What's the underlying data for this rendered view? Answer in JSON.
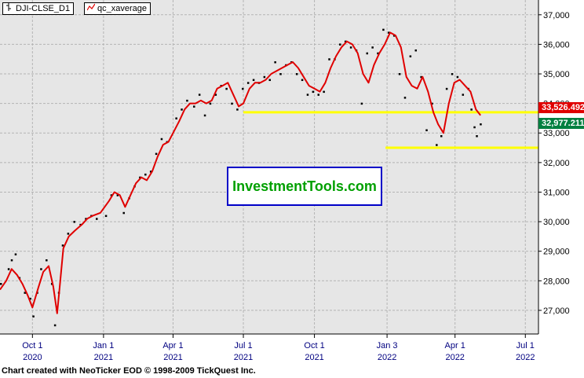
{
  "legend": [
    {
      "label": "DJI-CLSE_D1",
      "icon": "bar-chart-icon"
    },
    {
      "label": "qc_xaverage",
      "icon": "line-chart-icon"
    }
  ],
  "watermark": "InvestmentTools.com",
  "footer": "Chart created with NeoTicker EOD © 1998-2009 TickQuest Inc.",
  "price_labels": [
    {
      "value": "33,526.492",
      "color": "#e00000"
    },
    {
      "value": "32,977.211",
      "color": "#008040"
    }
  ],
  "colors": {
    "plot_bg": "#e6e6e6",
    "grid": "#b4b4b4",
    "ma_line": "#e00000",
    "price_dots": "#000000",
    "support": "#ffff00"
  },
  "chart_data": {
    "type": "line",
    "ylim": [
      26200,
      37500
    ],
    "y_ticks": [
      27000,
      28000,
      29000,
      30000,
      31000,
      32000,
      33000,
      34000,
      35000,
      36000,
      37000
    ],
    "y_tick_labels": [
      "27,000",
      "28,000",
      "29,000",
      "30,000",
      "31,000",
      "32,000",
      "33,000",
      "34,000",
      "35,000",
      "36,000",
      "37,000"
    ],
    "x_ticks": [
      {
        "date": "2020-10-01",
        "label1": "Oct 1",
        "label2": "2020"
      },
      {
        "date": "2021-01-01",
        "label1": "Jan 1",
        "label2": "2021"
      },
      {
        "date": "2021-04-01",
        "label1": "Apr 1",
        "label2": "2021"
      },
      {
        "date": "2021-07-01",
        "label1": "Jul 1",
        "label2": "2021"
      },
      {
        "date": "2021-10-01",
        "label1": "Oct 1",
        "label2": "2021"
      },
      {
        "date": "2022-01-03",
        "label1": "Jan 3",
        "label2": "2022"
      },
      {
        "date": "2022-04-01",
        "label1": "Apr 1",
        "label2": "2022"
      },
      {
        "date": "2022-07-01",
        "label1": "Jul 1",
        "label2": "2022"
      }
    ],
    "xlim": [
      "2020-08-20",
      "2022-07-18"
    ],
    "series": [
      {
        "name": "qc_xaverage",
        "points": [
          [
            "2020-08-20",
            27700
          ],
          [
            "2020-08-28",
            28000
          ],
          [
            "2020-09-04",
            28400
          ],
          [
            "2020-09-11",
            28200
          ],
          [
            "2020-09-18",
            27900
          ],
          [
            "2020-09-25",
            27500
          ],
          [
            "2020-10-01",
            27100
          ],
          [
            "2020-10-09",
            27800
          ],
          [
            "2020-10-15",
            28300
          ],
          [
            "2020-10-22",
            28500
          ],
          [
            "2020-10-28",
            27800
          ],
          [
            "2020-11-02",
            26900
          ],
          [
            "2020-11-06",
            28000
          ],
          [
            "2020-11-10",
            29100
          ],
          [
            "2020-11-17",
            29500
          ],
          [
            "2020-11-25",
            29700
          ],
          [
            "2020-12-04",
            29900
          ],
          [
            "2020-12-11",
            30100
          ],
          [
            "2020-12-18",
            30200
          ],
          [
            "2020-12-28",
            30300
          ],
          [
            "2021-01-08",
            30700
          ],
          [
            "2021-01-15",
            31000
          ],
          [
            "2021-01-22",
            30900
          ],
          [
            "2021-01-29",
            30500
          ],
          [
            "2021-02-05",
            30900
          ],
          [
            "2021-02-12",
            31300
          ],
          [
            "2021-02-19",
            31500
          ],
          [
            "2021-02-26",
            31400
          ],
          [
            "2021-03-05",
            31700
          ],
          [
            "2021-03-12",
            32200
          ],
          [
            "2021-03-19",
            32600
          ],
          [
            "2021-03-26",
            32700
          ],
          [
            "2021-04-01",
            33000
          ],
          [
            "2021-04-09",
            33400
          ],
          [
            "2021-04-16",
            33800
          ],
          [
            "2021-04-23",
            34000
          ],
          [
            "2021-04-30",
            34000
          ],
          [
            "2021-05-07",
            34100
          ],
          [
            "2021-05-14",
            34000
          ],
          [
            "2021-05-21",
            34100
          ],
          [
            "2021-05-28",
            34500
          ],
          [
            "2021-06-04",
            34600
          ],
          [
            "2021-06-11",
            34700
          ],
          [
            "2021-06-18",
            34300
          ],
          [
            "2021-06-25",
            33900
          ],
          [
            "2021-07-01",
            34000
          ],
          [
            "2021-07-09",
            34500
          ],
          [
            "2021-07-16",
            34700
          ],
          [
            "2021-07-23",
            34700
          ],
          [
            "2021-07-30",
            34800
          ],
          [
            "2021-08-06",
            35000
          ],
          [
            "2021-08-13",
            35100
          ],
          [
            "2021-08-20",
            35200
          ],
          [
            "2021-08-27",
            35300
          ],
          [
            "2021-09-03",
            35400
          ],
          [
            "2021-09-10",
            35200
          ],
          [
            "2021-09-17",
            34900
          ],
          [
            "2021-09-24",
            34600
          ],
          [
            "2021-10-01",
            34500
          ],
          [
            "2021-10-08",
            34400
          ],
          [
            "2021-10-15",
            34700
          ],
          [
            "2021-10-22",
            35200
          ],
          [
            "2021-10-29",
            35600
          ],
          [
            "2021-11-05",
            35900
          ],
          [
            "2021-11-12",
            36100
          ],
          [
            "2021-11-19",
            36000
          ],
          [
            "2021-11-26",
            35700
          ],
          [
            "2021-12-03",
            35000
          ],
          [
            "2021-12-10",
            34700
          ],
          [
            "2021-12-17",
            35300
          ],
          [
            "2021-12-24",
            35700
          ],
          [
            "2021-12-31",
            36000
          ],
          [
            "2022-01-07",
            36400
          ],
          [
            "2022-01-14",
            36300
          ],
          [
            "2022-01-21",
            35900
          ],
          [
            "2022-01-28",
            34900
          ],
          [
            "2022-02-04",
            34600
          ],
          [
            "2022-02-11",
            34500
          ],
          [
            "2022-02-18",
            34900
          ],
          [
            "2022-02-25",
            34400
          ],
          [
            "2022-03-04",
            33700
          ],
          [
            "2022-03-10",
            33300
          ],
          [
            "2022-03-17",
            33000
          ],
          [
            "2022-03-24",
            34000
          ],
          [
            "2022-03-31",
            34700
          ],
          [
            "2022-04-07",
            34800
          ],
          [
            "2022-04-14",
            34600
          ],
          [
            "2022-04-21",
            34400
          ],
          [
            "2022-04-28",
            33800
          ],
          [
            "2022-05-04",
            33600
          ]
        ]
      }
    ],
    "daily_closes": [
      [
        "2020-08-21",
        27900
      ],
      [
        "2020-08-31",
        28400
      ],
      [
        "2020-09-04",
        28700
      ],
      [
        "2020-09-09",
        28900
      ],
      [
        "2020-09-14",
        28100
      ],
      [
        "2020-09-21",
        27600
      ],
      [
        "2020-09-28",
        27400
      ],
      [
        "2020-10-02",
        26800
      ],
      [
        "2020-10-07",
        27600
      ],
      [
        "2020-10-12",
        28400
      ],
      [
        "2020-10-19",
        28700
      ],
      [
        "2020-10-26",
        27900
      ],
      [
        "2020-10-30",
        26500
      ],
      [
        "2020-11-04",
        27600
      ],
      [
        "2020-11-09",
        29200
      ],
      [
        "2020-11-16",
        29600
      ],
      [
        "2020-11-24",
        30000
      ],
      [
        "2020-12-02",
        29900
      ],
      [
        "2020-12-09",
        30100
      ],
      [
        "2020-12-16",
        30200
      ],
      [
        "2020-12-23",
        30100
      ],
      [
        "2021-01-04",
        30200
      ],
      [
        "2021-01-11",
        30900
      ],
      [
        "2021-01-19",
        30900
      ],
      [
        "2021-01-27",
        30300
      ],
      [
        "2021-02-03",
        30800
      ],
      [
        "2021-02-10",
        31200
      ],
      [
        "2021-02-17",
        31500
      ],
      [
        "2021-02-24",
        31600
      ],
      [
        "2021-03-03",
        31700
      ],
      [
        "2021-03-10",
        32300
      ],
      [
        "2021-03-17",
        32800
      ],
      [
        "2021-03-24",
        32700
      ],
      [
        "2021-04-05",
        33500
      ],
      [
        "2021-04-12",
        33800
      ],
      [
        "2021-04-19",
        34100
      ],
      [
        "2021-04-28",
        33900
      ],
      [
        "2021-05-05",
        34300
      ],
      [
        "2021-05-12",
        33600
      ],
      [
        "2021-05-19",
        34000
      ],
      [
        "2021-05-26",
        34300
      ],
      [
        "2021-06-02",
        34600
      ],
      [
        "2021-06-09",
        34500
      ],
      [
        "2021-06-16",
        34000
      ],
      [
        "2021-06-23",
        33800
      ],
      [
        "2021-06-30",
        34500
      ],
      [
        "2021-07-07",
        34700
      ],
      [
        "2021-07-14",
        34800
      ],
      [
        "2021-07-21",
        34700
      ],
      [
        "2021-07-28",
        34900
      ],
      [
        "2021-08-04",
        34800
      ],
      [
        "2021-08-11",
        35400
      ],
      [
        "2021-08-18",
        35000
      ],
      [
        "2021-08-25",
        35300
      ],
      [
        "2021-09-01",
        35400
      ],
      [
        "2021-09-08",
        35000
      ],
      [
        "2021-09-15",
        34800
      ],
      [
        "2021-09-22",
        34300
      ],
      [
        "2021-09-29",
        34400
      ],
      [
        "2021-10-06",
        34300
      ],
      [
        "2021-10-13",
        34400
      ],
      [
        "2021-10-20",
        35500
      ],
      [
        "2021-10-27",
        35500
      ],
      [
        "2021-11-03",
        36000
      ],
      [
        "2021-11-10",
        36100
      ],
      [
        "2021-11-17",
        35900
      ],
      [
        "2021-11-24",
        35800
      ],
      [
        "2021-12-01",
        34000
      ],
      [
        "2021-12-08",
        35700
      ],
      [
        "2021-12-15",
        35900
      ],
      [
        "2021-12-22",
        35700
      ],
      [
        "2021-12-29",
        36500
      ],
      [
        "2022-01-05",
        36400
      ],
      [
        "2022-01-12",
        36300
      ],
      [
        "2022-01-19",
        35000
      ],
      [
        "2022-01-26",
        34200
      ],
      [
        "2022-02-02",
        35600
      ],
      [
        "2022-02-09",
        35800
      ],
      [
        "2022-02-16",
        34900
      ],
      [
        "2022-02-23",
        33100
      ],
      [
        "2022-03-02",
        34000
      ],
      [
        "2022-03-08",
        32600
      ],
      [
        "2022-03-14",
        32900
      ],
      [
        "2022-03-21",
        34500
      ],
      [
        "2022-03-28",
        35000
      ],
      [
        "2022-04-04",
        34900
      ],
      [
        "2022-04-11",
        34300
      ],
      [
        "2022-04-18",
        34500
      ],
      [
        "2022-04-22",
        33800
      ],
      [
        "2022-04-26",
        33200
      ],
      [
        "2022-04-29",
        32900
      ],
      [
        "2022-05-04",
        33300
      ]
    ],
    "support_lines": [
      {
        "y": 33700,
        "from": "2021-07-01",
        "to": "2022-07-18"
      },
      {
        "y": 32500,
        "from": "2022-01-01",
        "to": "2022-07-18"
      }
    ]
  }
}
